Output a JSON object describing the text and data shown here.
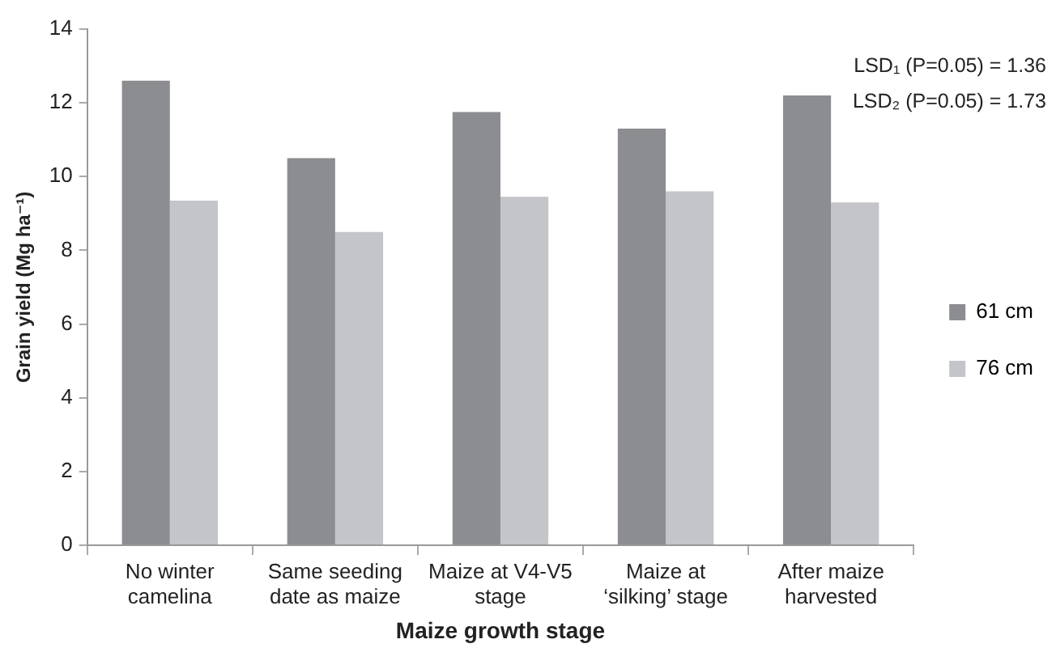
{
  "chart_data": {
    "type": "bar",
    "xlabel": "Maize growth stage",
    "ylabel": "Grain yield (Mg ha⁻¹)",
    "categories": [
      "No winter camelina",
      "Same seeding date as maize",
      "Maize at V4-V5 stage",
      "Maize at ‘silking’ stage",
      "After maize harvested"
    ],
    "series": [
      {
        "name": "61 cm",
        "color": "#8c8d90",
        "values": [
          12.6,
          10.5,
          11.75,
          11.3,
          12.2
        ]
      },
      {
        "name": "76 cm",
        "color": "#c4c5c8",
        "values": [
          9.35,
          8.5,
          9.45,
          9.6,
          9.3
        ]
      }
    ],
    "ylim": [
      0,
      14
    ],
    "yticks": [
      0,
      2,
      4,
      6,
      8,
      10,
      12,
      14
    ],
    "grid": false,
    "legend": "right",
    "annotations": [
      "LSD₁ (P=0.05) = 1.36",
      "LSD₂ (P=0.05) = 1.73"
    ]
  }
}
